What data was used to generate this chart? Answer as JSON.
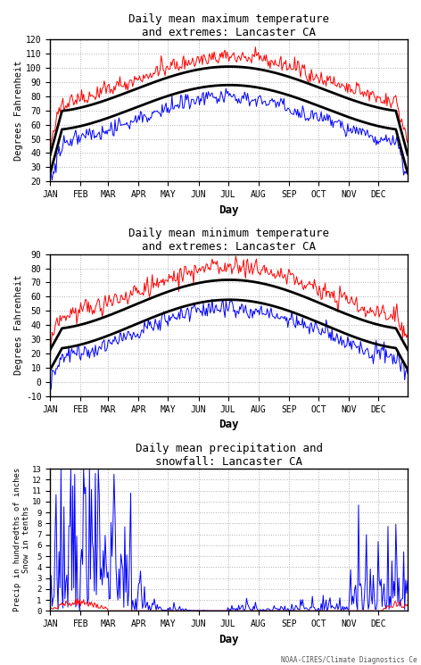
{
  "title1": "Daily mean maximum temperature\nand extremes: Lancaster CA",
  "title2": "Daily mean minimum temperature\nand extremes: Lancaster CA",
  "title3": "Daily mean precipitation and\nsnowfall: Lancaster CA",
  "ylabel1": "Degrees Fahrenheit",
  "ylabel2": "Degrees Fahrenheit",
  "ylabel3": "Precip in hundredths of inches\nSnow in tenths",
  "xlabel": "Day",
  "xtick_labels": [
    "JAN",
    "FEB",
    "MAR",
    "APR",
    "MAY",
    "JUN",
    "JUL",
    "AUG",
    "SEP",
    "OCT",
    "NOV",
    "DEC"
  ],
  "bg_color": "#ffffff",
  "grid_color": "#b0b0b0",
  "axis_bg": "#ffffff",
  "max_ylim": [
    20,
    120
  ],
  "max_yticks": [
    20,
    30,
    40,
    50,
    60,
    70,
    80,
    90,
    100,
    110,
    120
  ],
  "min_ylim": [
    -10,
    90
  ],
  "min_yticks": [
    -10,
    0,
    10,
    20,
    30,
    40,
    50,
    60,
    70,
    80,
    90
  ],
  "precip_ylim": [
    0,
    13
  ],
  "precip_yticks": [
    0,
    1,
    2,
    3,
    4,
    5,
    6,
    7,
    8,
    9,
    10,
    11,
    12,
    13
  ],
  "watermark": "NOAA-CIRES/Climate Diagnostics Ce",
  "seed": 42
}
